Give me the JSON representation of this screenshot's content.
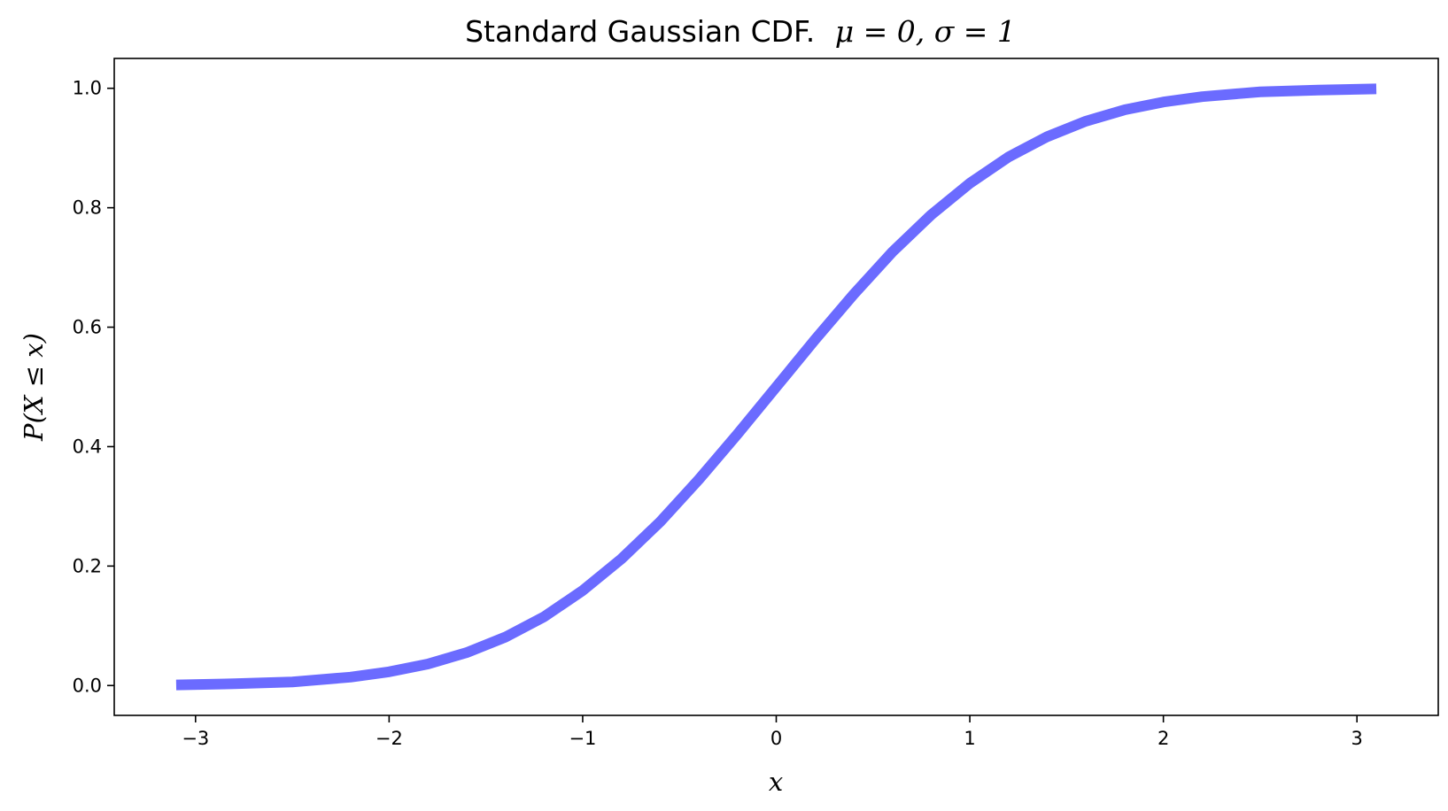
{
  "chart_data": {
    "type": "line",
    "title_prefix": "Standard Gaussian CDF.",
    "title_math": "μ = 0, σ = 1",
    "xlabel": "x",
    "ylabel": "P(X ≤ x)",
    "xlim": [
      -3.42,
      3.42
    ],
    "ylim": [
      -0.05,
      1.05
    ],
    "x_ticks": [
      -3,
      -2,
      -1,
      0,
      1,
      2,
      3
    ],
    "x_tick_labels": [
      "−3",
      "−2",
      "−1",
      "0",
      "1",
      "2",
      "3"
    ],
    "y_ticks": [
      0.0,
      0.2,
      0.4,
      0.6,
      0.8,
      1.0
    ],
    "y_tick_labels": [
      "0.0",
      "0.2",
      "0.4",
      "0.6",
      "0.8",
      "1.0"
    ],
    "grid": false,
    "series": [
      {
        "color": "#6b6bff",
        "x": [
          -3.1,
          -2.8,
          -2.5,
          -2.2,
          -2.0,
          -1.8,
          -1.6,
          -1.4,
          -1.2,
          -1.0,
          -0.8,
          -0.6,
          -0.4,
          -0.2,
          0.0,
          0.2,
          0.4,
          0.6,
          0.8,
          1.0,
          1.2,
          1.4,
          1.6,
          1.8,
          2.0,
          2.2,
          2.5,
          2.8,
          3.1
        ],
        "values": [
          0.001,
          0.003,
          0.006,
          0.014,
          0.023,
          0.036,
          0.055,
          0.081,
          0.115,
          0.159,
          0.212,
          0.274,
          0.345,
          0.421,
          0.5,
          0.579,
          0.655,
          0.726,
          0.788,
          0.841,
          0.885,
          0.919,
          0.945,
          0.964,
          0.977,
          0.986,
          0.994,
          0.997,
          0.999
        ]
      }
    ]
  }
}
